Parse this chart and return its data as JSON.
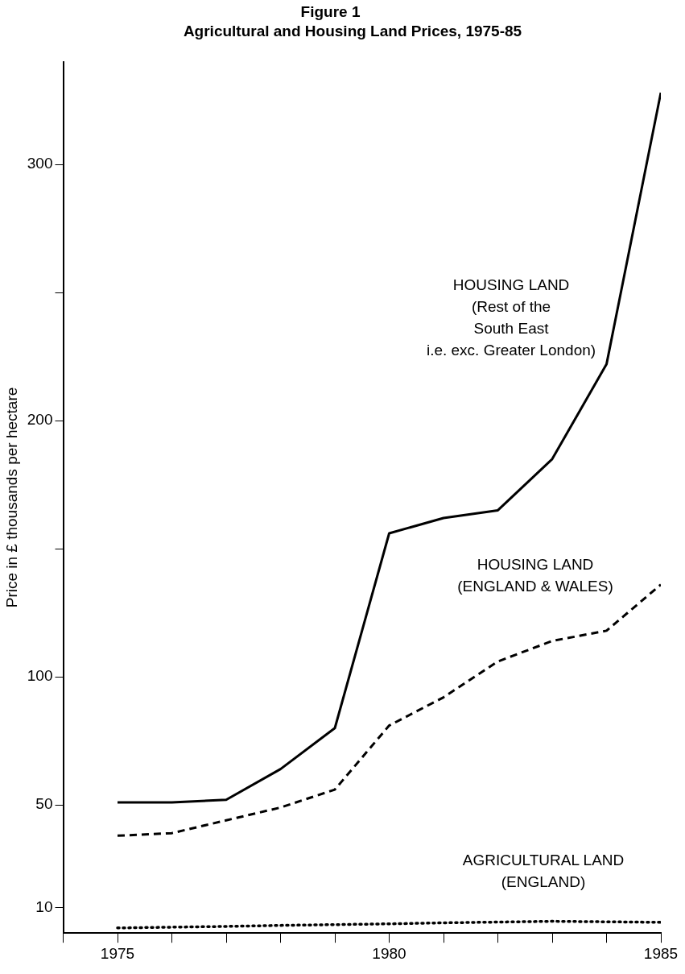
{
  "chart_data": {
    "type": "line",
    "title": "Figure 1",
    "subtitle": "Agricultural and Housing Land Prices, 1975-85",
    "ylabel": "Price in £ thousands per hectare",
    "x": [
      1975,
      1976,
      1977,
      1978,
      1979,
      1980,
      1981,
      1982,
      1983,
      1984,
      1985
    ],
    "xlim": [
      1974,
      1985
    ],
    "xticks": [
      {
        "value": 1974,
        "label": null
      },
      1975,
      {
        "value": 1976,
        "label": null
      },
      {
        "value": 1977,
        "label": null
      },
      {
        "value": 1978,
        "label": null
      },
      {
        "value": 1979,
        "label": null
      },
      1980,
      {
        "value": 1981,
        "label": null
      },
      {
        "value": 1982,
        "label": null
      },
      {
        "value": 1983,
        "label": null
      },
      {
        "value": 1984,
        "label": null
      },
      1985
    ],
    "ylim": [
      0,
      340
    ],
    "yticks": [
      10,
      50,
      100,
      {
        "value": 150,
        "label": null
      },
      200,
      {
        "value": 250,
        "label": null
      },
      300
    ],
    "grid": false,
    "legend": false,
    "marker": "none",
    "series": [
      {
        "name": "HOUSING LAND\n(Rest of the\nSouth East\ni.e. exc. Greater London)",
        "color": "#000000",
        "line_style": "solid",
        "values": [
          51,
          51,
          52,
          64,
          80,
          156,
          162,
          165,
          185,
          222,
          328
        ]
      },
      {
        "name": "HOUSING LAND\n(ENGLAND & WALES)",
        "color": "#000000",
        "line_style": "dashed",
        "values": [
          38,
          39,
          44,
          49,
          56,
          81,
          92,
          106,
          114,
          118,
          136
        ]
      },
      {
        "name": "AGRICULTURAL LAND\n(ENGLAND)",
        "color": "#000000",
        "line_style": "dotted",
        "values": [
          2,
          2.3,
          2.6,
          3,
          3.3,
          3.6,
          4,
          4.3,
          4.6,
          4.4,
          4.2
        ]
      }
    ]
  }
}
